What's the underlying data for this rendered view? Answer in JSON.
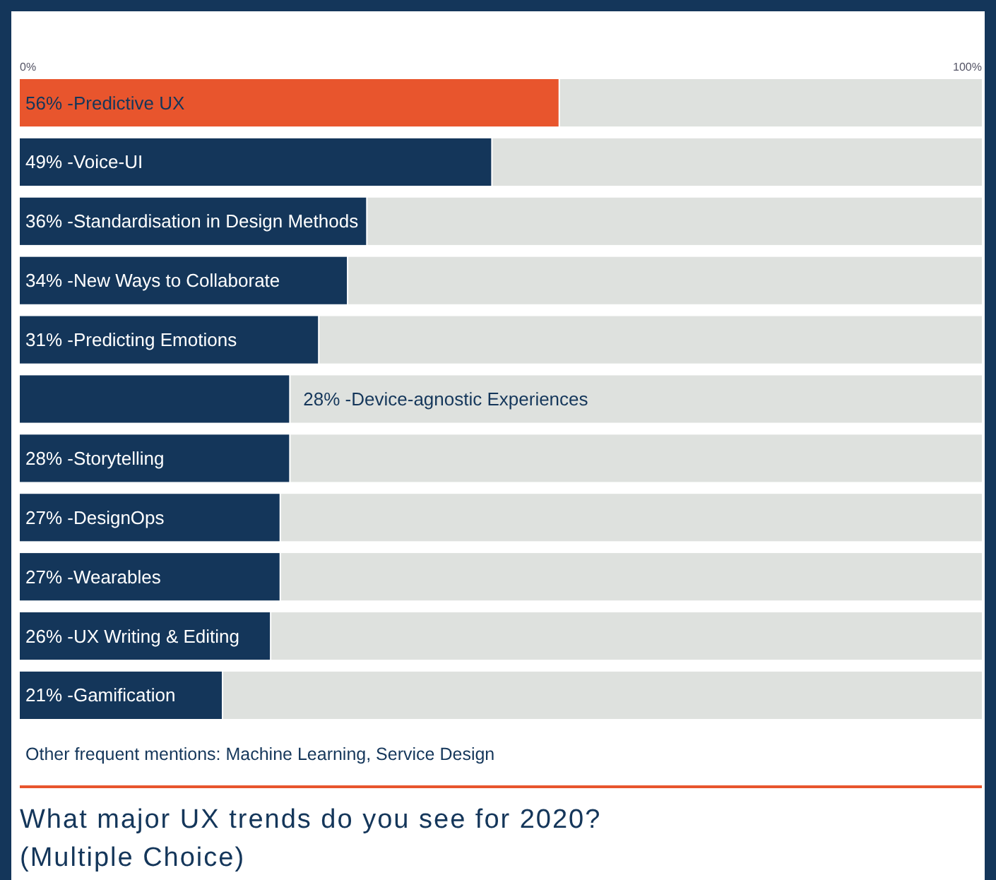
{
  "chart_data": {
    "type": "bar",
    "orientation": "horizontal",
    "title": "What major UX trends do you see for 2020?",
    "subtitle": "(Multiple Choice)",
    "categories": [
      "56% -Predictive UX",
      "49% -Voice-UI",
      "36% -Standardisation in Design Methods",
      "34% -New Ways to Collaborate",
      "31% -Predicting Emotions",
      "28% -Device-agnostic Experiences",
      "28% -Storytelling",
      "27% -DesignOps",
      "27% -Wearables",
      "26% -UX Writing & Editing",
      "21% -Gamification"
    ],
    "values": [
      56,
      49,
      36,
      34,
      31,
      28,
      28,
      27,
      27,
      26,
      21
    ],
    "colors": [
      "#e8552d",
      "#14365a",
      "#14365a",
      "#14365a",
      "#14365a",
      "#14365a",
      "#14365a",
      "#14365a",
      "#14365a",
      "#14365a",
      "#14365a"
    ],
    "xlim": [
      0,
      100
    ],
    "xticks": [
      {
        "value": 0,
        "label": "0%"
      },
      {
        "value": 100,
        "label": "100%"
      }
    ],
    "annotations": [
      "Other frequent mentions: Machine Learning, Service Design"
    ]
  }
}
